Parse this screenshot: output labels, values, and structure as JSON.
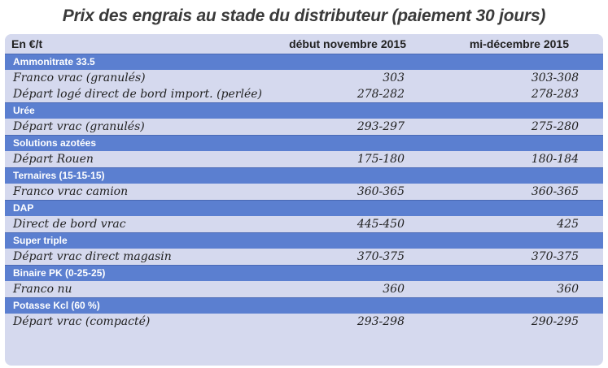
{
  "title": "Prix des engrais au stade du distributeur (paiement 30 jours)",
  "header": {
    "unit": "En €/t",
    "col1": "début novembre 2015",
    "col2": "mi-décembre 2015"
  },
  "groups": [
    {
      "name": "Ammonitrate 33.5",
      "rows": [
        {
          "label": "Franco vrac (granulés)",
          "v1": "303",
          "v2": "303-308"
        },
        {
          "label": "Départ logé direct de bord import. (perlée)",
          "v1": "278-282",
          "v2": "278-283"
        }
      ]
    },
    {
      "name": "Urée",
      "rows": [
        {
          "label": "Départ vrac (granulés)",
          "v1": "293-297",
          "v2": "275-280"
        }
      ]
    },
    {
      "name": "Solutions azotées",
      "rows": [
        {
          "label": "Départ Rouen",
          "v1": "175-180",
          "v2": "180-184"
        }
      ]
    },
    {
      "name": "Ternaires (15-15-15)",
      "rows": [
        {
          "label": "Franco vrac camion",
          "v1": "360-365",
          "v2": "360-365"
        }
      ]
    },
    {
      "name": "DAP",
      "rows": [
        {
          "label": "Direct de bord vrac",
          "v1": "445-450",
          "v2": "425"
        }
      ]
    },
    {
      "name": "Super triple",
      "rows": [
        {
          "label": "Départ vrac direct magasin",
          "v1": "370-375",
          "v2": "370-375"
        }
      ]
    },
    {
      "name": "Binaire PK (0-25-25)",
      "rows": [
        {
          "label": "Franco nu",
          "v1": "360",
          "v2": "360"
        }
      ]
    },
    {
      "name": "Potasse Kcl (60 %)",
      "rows": [
        {
          "label": "Départ vrac (compacté)",
          "v1": "293-298",
          "v2": "290-295"
        }
      ]
    }
  ]
}
